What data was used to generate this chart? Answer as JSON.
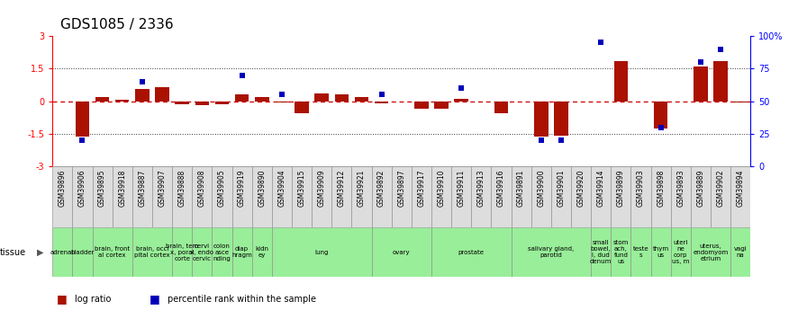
{
  "title": "GDS1085 / 2336",
  "samples": [
    "GSM39896",
    "GSM39906",
    "GSM39895",
    "GSM39918",
    "GSM39887",
    "GSM39907",
    "GSM39888",
    "GSM39908",
    "GSM39905",
    "GSM39919",
    "GSM39890",
    "GSM39904",
    "GSM39915",
    "GSM39909",
    "GSM39912",
    "GSM39921",
    "GSM39892",
    "GSM39897",
    "GSM39917",
    "GSM39910",
    "GSM39911",
    "GSM39913",
    "GSM39916",
    "GSM39891",
    "GSM39900",
    "GSM39901",
    "GSM39920",
    "GSM39914",
    "GSM39899",
    "GSM39903",
    "GSM39898",
    "GSM39893",
    "GSM39889",
    "GSM39902",
    "GSM39894"
  ],
  "log_ratio": [
    0.0,
    -1.62,
    0.18,
    0.05,
    0.55,
    0.65,
    -0.12,
    -0.18,
    -0.12,
    0.3,
    0.18,
    -0.05,
    -0.55,
    0.35,
    0.3,
    0.2,
    -0.1,
    0.0,
    -0.35,
    -0.35,
    0.1,
    0.0,
    -0.55,
    0.0,
    -1.65,
    -1.6,
    0.0,
    0.0,
    1.85,
    0.0,
    -1.25,
    0.0,
    1.6,
    1.85,
    -0.05
  ],
  "percentile_rank": [
    null,
    20,
    null,
    null,
    65,
    null,
    null,
    null,
    null,
    70,
    null,
    55,
    null,
    null,
    null,
    null,
    55,
    null,
    null,
    null,
    60,
    null,
    null,
    null,
    20,
    20,
    null,
    95,
    null,
    null,
    30,
    null,
    80,
    90,
    null
  ],
  "tissues": [
    {
      "label": "adrenal",
      "start": 0,
      "end": 1
    },
    {
      "label": "bladder",
      "start": 1,
      "end": 2
    },
    {
      "label": "brain, front\nal cortex",
      "start": 2,
      "end": 4
    },
    {
      "label": "brain, occi\npital cortex",
      "start": 4,
      "end": 6
    },
    {
      "label": "brain, tem\nx, poral\ncorte",
      "start": 6,
      "end": 7
    },
    {
      "label": "cervi\nx, endo\ncervic",
      "start": 7,
      "end": 8
    },
    {
      "label": "colon\nasce\nnding",
      "start": 8,
      "end": 9
    },
    {
      "label": "diap\nhragm",
      "start": 9,
      "end": 10
    },
    {
      "label": "kidn\ney",
      "start": 10,
      "end": 11
    },
    {
      "label": "lung",
      "start": 11,
      "end": 16
    },
    {
      "label": "ovary",
      "start": 16,
      "end": 19
    },
    {
      "label": "prostate",
      "start": 19,
      "end": 23
    },
    {
      "label": "salivary gland,\nparotid",
      "start": 23,
      "end": 27
    },
    {
      "label": "small\nbowel,\ni, dud\ndenum",
      "start": 27,
      "end": 28
    },
    {
      "label": "stom\nach,\nfund\nus",
      "start": 28,
      "end": 29
    },
    {
      "label": "teste\ns",
      "start": 29,
      "end": 30
    },
    {
      "label": "thym\nus",
      "start": 30,
      "end": 31
    },
    {
      "label": "uteri\nne\ncorp\nus, m",
      "start": 31,
      "end": 32
    },
    {
      "label": "uterus,\nendomyom\netrium",
      "start": 32,
      "end": 34
    },
    {
      "label": "vagi\nna",
      "start": 34,
      "end": 35
    }
  ],
  "tissue_color": "#99ee99",
  "tissue_edge_color": "#888888",
  "sample_box_color": "#dddddd",
  "sample_edge_color": "#888888",
  "ylim": [
    -3,
    3
  ],
  "yticks": [
    -3,
    -1.5,
    0,
    1.5,
    3
  ],
  "ytick_labels": [
    "-3",
    "-1.5",
    "0",
    "1.5",
    "3"
  ],
  "y_right_ticks": [
    0,
    25,
    50,
    75,
    100
  ],
  "y_right_labels": [
    "0",
    "25",
    "50",
    "75",
    "100%"
  ],
  "bar_color": "#aa1100",
  "dot_color": "#0000bb",
  "hline_color": "#cc0000",
  "dotted_color": "#333333",
  "bg_color": "#ffffff",
  "title_fontsize": 11,
  "tick_fontsize": 7,
  "sample_fontsize": 5.5,
  "tissue_fontsize": 5.0,
  "legend_fontsize": 7
}
